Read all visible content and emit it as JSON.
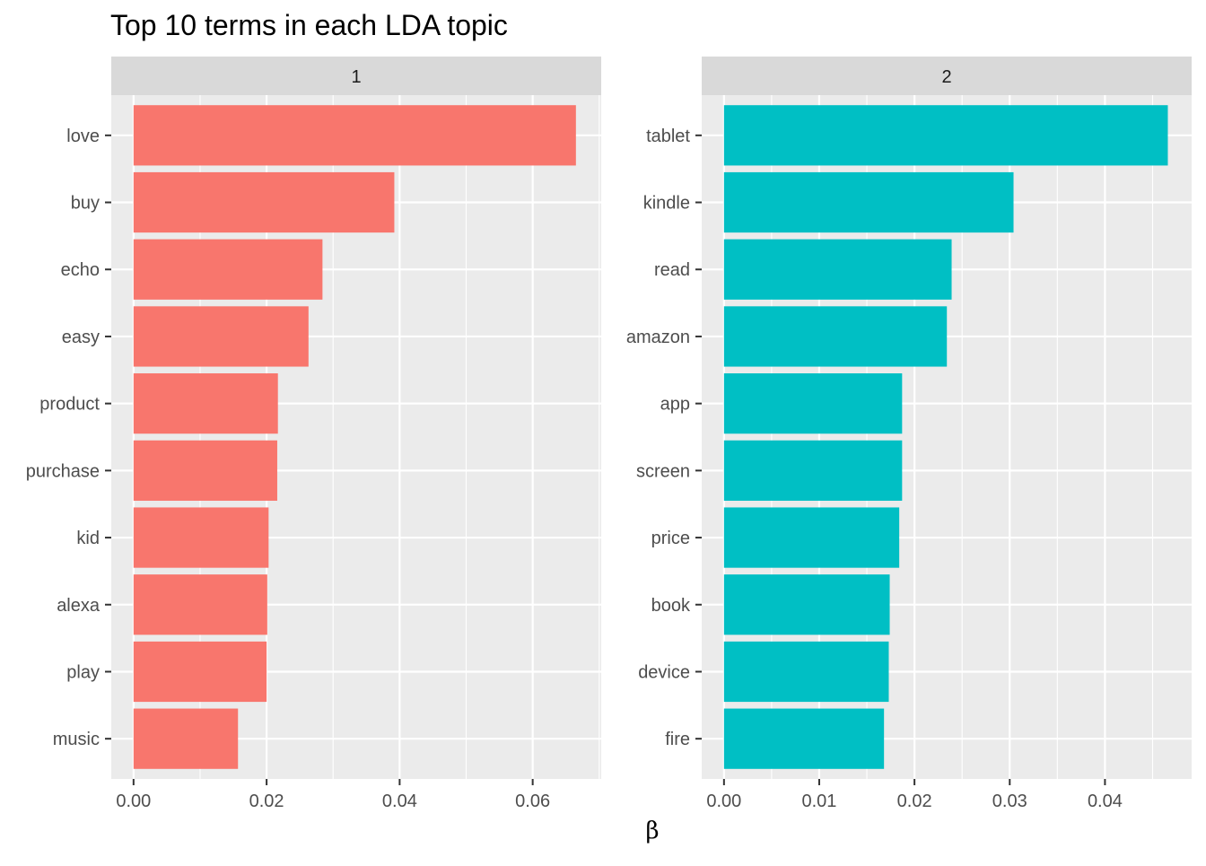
{
  "chart_data": {
    "type": "bar",
    "orientation": "horizontal",
    "title": "Top 10 terms in each LDA topic",
    "xlabel": "β",
    "ylabel": "",
    "grid": true,
    "legend": "none",
    "panels": [
      {
        "strip_label": "1",
        "color": "#F8766D",
        "xlim": [
          -0.00335,
          0.0703
        ],
        "x_ticks": [
          0,
          0.02,
          0.04,
          0.06
        ],
        "x_tick_labels": [
          "0.00",
          "0.02",
          "0.04",
          "0.06"
        ],
        "categories": [
          "love",
          "buy",
          "echo",
          "easy",
          "product",
          "purchase",
          "kid",
          "alexa",
          "play",
          "music"
        ],
        "values": [
          0.0665,
          0.0392,
          0.0284,
          0.0263,
          0.0217,
          0.0216,
          0.0203,
          0.0201,
          0.02,
          0.0157
        ]
      },
      {
        "strip_label": "2",
        "color": "#00BFC4",
        "xlim": [
          -0.00234,
          0.0491
        ],
        "x_ticks": [
          0,
          0.01,
          0.02,
          0.03,
          0.04
        ],
        "x_tick_labels": [
          "0.00",
          "0.01",
          "0.02",
          "0.03",
          "0.04"
        ],
        "categories": [
          "tablet",
          "kindle",
          "read",
          "amazon",
          "app",
          "screen",
          "price",
          "book",
          "device",
          "fire"
        ],
        "values": [
          0.0466,
          0.0304,
          0.0239,
          0.0234,
          0.0187,
          0.0187,
          0.0184,
          0.0174,
          0.0173,
          0.0168
        ]
      }
    ]
  }
}
